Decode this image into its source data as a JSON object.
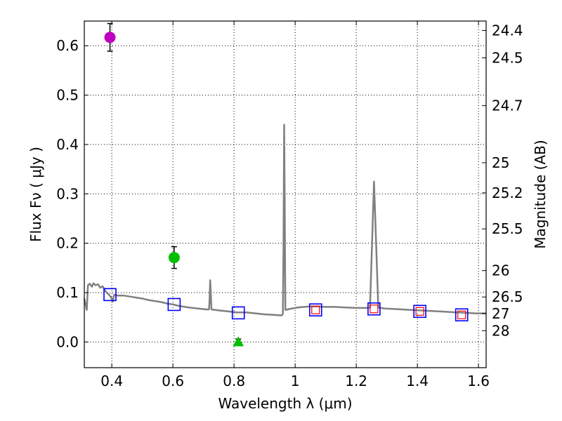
{
  "chart_data": {
    "type": "scatter",
    "xlabel": "Wavelength  λ (μm)",
    "ylabel": "Flux  Fν  ( μJy )",
    "y2label": "Magnitude (AB)",
    "xlim": [
      0.31,
      1.625
    ],
    "ylim": [
      -0.052,
      0.65
    ],
    "grid": true,
    "x_ticks": [
      {
        "value": 0.4,
        "label": "0.4"
      },
      {
        "value": 0.6,
        "label": "0.6"
      },
      {
        "value": 0.8,
        "label": "0.8"
      },
      {
        "value": 1.0,
        "label": "1"
      },
      {
        "value": 1.2,
        "label": "1.2"
      },
      {
        "value": 1.4,
        "label": "1.4"
      },
      {
        "value": 1.6,
        "label": "1.6"
      }
    ],
    "y_ticks": [
      {
        "value": 0.0,
        "label": "0.0"
      },
      {
        "value": 0.1,
        "label": "0.1"
      },
      {
        "value": 0.2,
        "label": "0.2"
      },
      {
        "value": 0.3,
        "label": "0.3"
      },
      {
        "value": 0.4,
        "label": "0.4"
      },
      {
        "value": 0.5,
        "label": "0.5"
      },
      {
        "value": 0.6,
        "label": "0.6"
      }
    ],
    "y2_ticks": [
      {
        "mag": 24.4,
        "label": "24.4"
      },
      {
        "mag": 24.5,
        "label": "24.5"
      },
      {
        "mag": 24.7,
        "label": "24.7"
      },
      {
        "mag": 25.0,
        "label": "25"
      },
      {
        "mag": 25.2,
        "label": "25.2"
      },
      {
        "mag": 25.5,
        "label": "25.5"
      },
      {
        "mag": 26.0,
        "label": "26"
      },
      {
        "mag": 26.5,
        "label": "26.5"
      },
      {
        "mag": 27.0,
        "label": "27"
      },
      {
        "mag": 28.0,
        "label": "28"
      }
    ],
    "observed_points": [
      {
        "name": "violet-detection",
        "x": 0.394,
        "y": 0.617,
        "yerr": 0.028,
        "shape": "circle",
        "color": "#bf00bf"
      },
      {
        "name": "green-detection",
        "x": 0.604,
        "y": 0.171,
        "yerr": 0.022,
        "shape": "circle",
        "color": "#00bf00"
      },
      {
        "name": "upper-limit",
        "x": 0.814,
        "y": 0.0,
        "yerr": 0.006,
        "shape": "triangle",
        "color": "#00bf00"
      }
    ],
    "model_photometry": [
      {
        "x": 0.394,
        "y": 0.096,
        "red_inner": false
      },
      {
        "x": 0.604,
        "y": 0.076,
        "red_inner": false
      },
      {
        "x": 0.814,
        "y": 0.059,
        "red_inner": false
      },
      {
        "x": 1.067,
        "y": 0.065,
        "red_inner": true
      },
      {
        "x": 1.258,
        "y": 0.067,
        "red_inner": true
      },
      {
        "x": 1.408,
        "y": 0.062,
        "red_inner": true
      },
      {
        "x": 1.545,
        "y": 0.055,
        "red_inner": true
      }
    ],
    "model_spectrum": {
      "color": "#808080",
      "points": [
        [
          0.31,
          0.088
        ],
        [
          0.318,
          0.065
        ],
        [
          0.322,
          0.115
        ],
        [
          0.328,
          0.118
        ],
        [
          0.335,
          0.112
        ],
        [
          0.34,
          0.119
        ],
        [
          0.347,
          0.115
        ],
        [
          0.355,
          0.117
        ],
        [
          0.362,
          0.11
        ],
        [
          0.37,
          0.113
        ],
        [
          0.378,
          0.104
        ],
        [
          0.385,
          0.099
        ],
        [
          0.392,
          0.095
        ],
        [
          0.398,
          0.09
        ],
        [
          0.403,
          0.082
        ],
        [
          0.408,
          0.096
        ],
        [
          0.42,
          0.094
        ],
        [
          0.44,
          0.094
        ],
        [
          0.46,
          0.092
        ],
        [
          0.48,
          0.09
        ],
        [
          0.5,
          0.088
        ],
        [
          0.52,
          0.085
        ],
        [
          0.54,
          0.083
        ],
        [
          0.56,
          0.081
        ],
        [
          0.58,
          0.078
        ],
        [
          0.6,
          0.076
        ],
        [
          0.62,
          0.073
        ],
        [
          0.65,
          0.07
        ],
        [
          0.68,
          0.068
        ],
        [
          0.71,
          0.066
        ],
        [
          0.718,
          0.066
        ],
        [
          0.72,
          0.085
        ],
        [
          0.722,
          0.125
        ],
        [
          0.724,
          0.098
        ],
        [
          0.726,
          0.066
        ],
        [
          0.75,
          0.064
        ],
        [
          0.78,
          0.062
        ],
        [
          0.81,
          0.06
        ],
        [
          0.84,
          0.06
        ],
        [
          0.87,
          0.058
        ],
        [
          0.9,
          0.056
        ],
        [
          0.93,
          0.055
        ],
        [
          0.95,
          0.054
        ],
        [
          0.957,
          0.054
        ],
        [
          0.96,
          0.058
        ],
        [
          0.962,
          0.2
        ],
        [
          0.964,
          0.44
        ],
        [
          0.966,
          0.28
        ],
        [
          0.968,
          0.065
        ],
        [
          0.975,
          0.066
        ],
        [
          0.99,
          0.068
        ],
        [
          1.01,
          0.07
        ],
        [
          1.03,
          0.071
        ],
        [
          1.05,
          0.072
        ],
        [
          1.07,
          0.072
        ],
        [
          1.1,
          0.071
        ],
        [
          1.13,
          0.071
        ],
        [
          1.16,
          0.07
        ],
        [
          1.2,
          0.069
        ],
        [
          1.235,
          0.069
        ],
        [
          1.245,
          0.07
        ],
        [
          1.258,
          0.325
        ],
        [
          1.272,
          0.07
        ],
        [
          1.29,
          0.068
        ],
        [
          1.32,
          0.067
        ],
        [
          1.35,
          0.066
        ],
        [
          1.38,
          0.065
        ],
        [
          1.41,
          0.064
        ],
        [
          1.44,
          0.063
        ],
        [
          1.47,
          0.062
        ],
        [
          1.5,
          0.061
        ],
        [
          1.53,
          0.06
        ],
        [
          1.56,
          0.059
        ],
        [
          1.59,
          0.058
        ],
        [
          1.625,
          0.058
        ]
      ]
    }
  },
  "colors": {
    "spectrum": "#808080",
    "model_box": "#0000ff",
    "model_inner": "#ff0000"
  }
}
